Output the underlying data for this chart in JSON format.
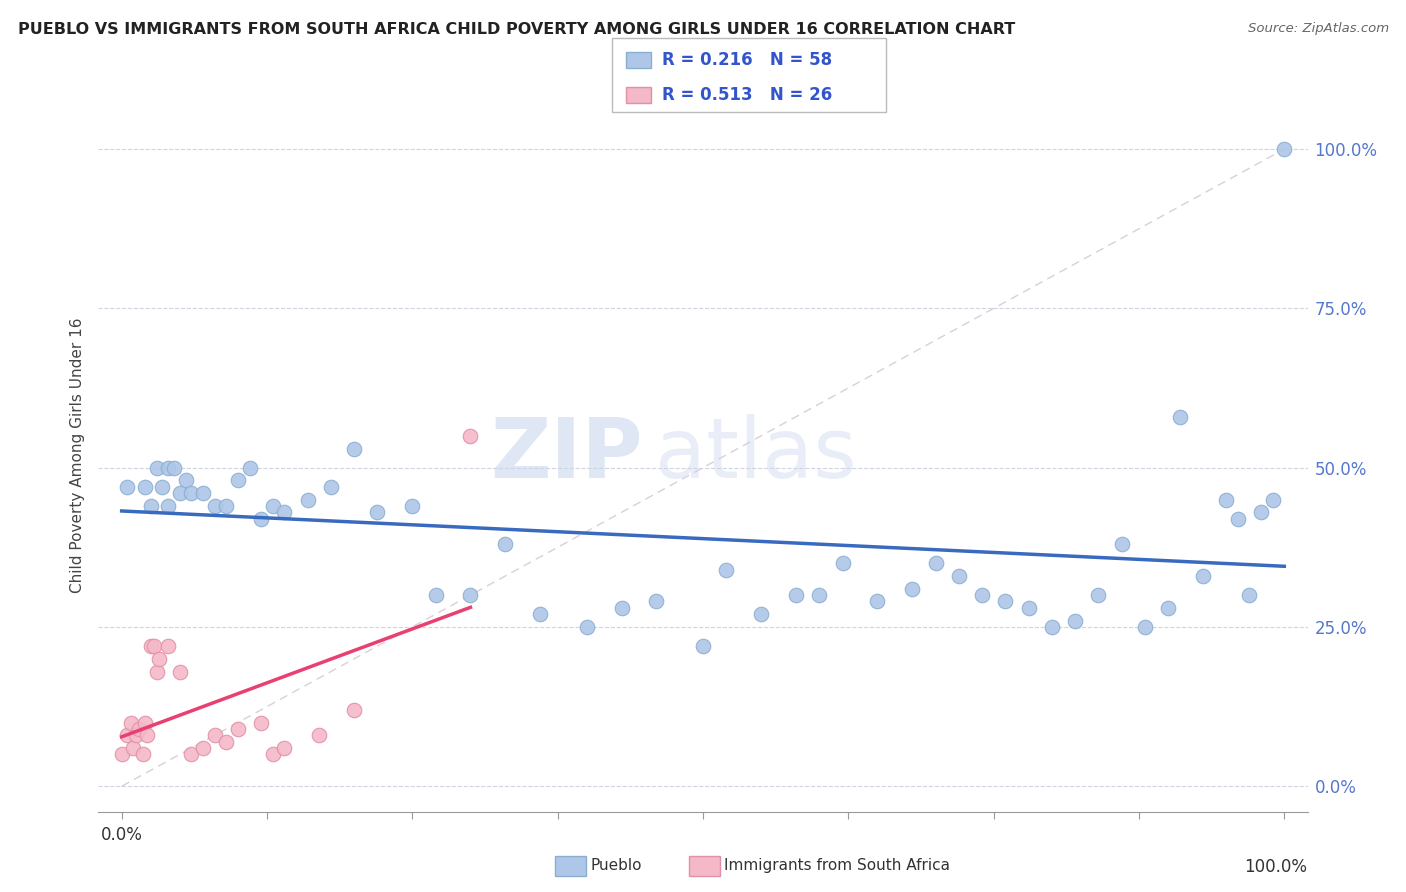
{
  "title": "PUEBLO VS IMMIGRANTS FROM SOUTH AFRICA CHILD POVERTY AMONG GIRLS UNDER 16 CORRELATION CHART",
  "source": "Source: ZipAtlas.com",
  "ylabel": "Child Poverty Among Girls Under 16",
  "r_pueblo": 0.216,
  "n_pueblo": 58,
  "r_immigrants": 0.513,
  "n_immigrants": 26,
  "pueblo_color": "#aec6e8",
  "pueblo_edge": "#8aaed0",
  "immigrants_color": "#f5b8c8",
  "immigrants_edge": "#e090a8",
  "pueblo_line_color": "#3a6abf",
  "immigrants_line_color": "#e84070",
  "diagonal_color": "#d8c8d8",
  "legend_color": "#3355cc",
  "watermark_color": "#d0daf0",
  "ytick_color": "#5577cc",
  "xtick_color": "#333333",
  "ytick_labels": [
    "100.0%",
    "75.0%",
    "50.0%",
    "25.0%",
    "0.0%"
  ],
  "ytick_values": [
    1.0,
    0.75,
    0.5,
    0.25,
    0.0
  ],
  "xtick_values": [
    0.0,
    0.125,
    0.25,
    0.375,
    0.5,
    0.625,
    0.75,
    0.875,
    1.0
  ],
  "xlim": [
    -0.02,
    1.02
  ],
  "ylim": [
    -0.04,
    1.08
  ],
  "pueblo_x": [
    0.005,
    0.02,
    0.025,
    0.03,
    0.035,
    0.04,
    0.04,
    0.045,
    0.05,
    0.055,
    0.06,
    0.07,
    0.08,
    0.09,
    0.1,
    0.11,
    0.12,
    0.13,
    0.14,
    0.16,
    0.18,
    0.2,
    0.22,
    0.25,
    0.27,
    0.3,
    0.33,
    0.36,
    0.4,
    0.43,
    0.46,
    0.5,
    0.52,
    0.55,
    0.58,
    0.6,
    0.62,
    0.65,
    0.68,
    0.7,
    0.72,
    0.74,
    0.76,
    0.78,
    0.8,
    0.82,
    0.84,
    0.86,
    0.88,
    0.9,
    0.91,
    0.93,
    0.95,
    0.96,
    0.97,
    0.98,
    0.99,
    1.0
  ],
  "pueblo_y": [
    0.47,
    0.47,
    0.44,
    0.5,
    0.47,
    0.44,
    0.5,
    0.5,
    0.46,
    0.48,
    0.46,
    0.46,
    0.44,
    0.44,
    0.48,
    0.5,
    0.42,
    0.44,
    0.43,
    0.45,
    0.47,
    0.53,
    0.43,
    0.44,
    0.3,
    0.3,
    0.38,
    0.27,
    0.25,
    0.28,
    0.29,
    0.22,
    0.34,
    0.27,
    0.3,
    0.3,
    0.35,
    0.29,
    0.31,
    0.35,
    0.33,
    0.3,
    0.29,
    0.28,
    0.25,
    0.26,
    0.3,
    0.38,
    0.25,
    0.28,
    0.58,
    0.33,
    0.45,
    0.42,
    0.3,
    0.43,
    0.45,
    1.0
  ],
  "immigrants_x": [
    0.0,
    0.005,
    0.008,
    0.01,
    0.012,
    0.015,
    0.018,
    0.02,
    0.022,
    0.025,
    0.028,
    0.03,
    0.032,
    0.04,
    0.05,
    0.06,
    0.07,
    0.08,
    0.09,
    0.1,
    0.12,
    0.13,
    0.14,
    0.17,
    0.2,
    0.3
  ],
  "immigrants_y": [
    0.05,
    0.08,
    0.1,
    0.06,
    0.08,
    0.09,
    0.05,
    0.1,
    0.08,
    0.22,
    0.22,
    0.18,
    0.2,
    0.22,
    0.18,
    0.05,
    0.06,
    0.08,
    0.07,
    0.09,
    0.1,
    0.05,
    0.06,
    0.08,
    0.12,
    0.55
  ]
}
